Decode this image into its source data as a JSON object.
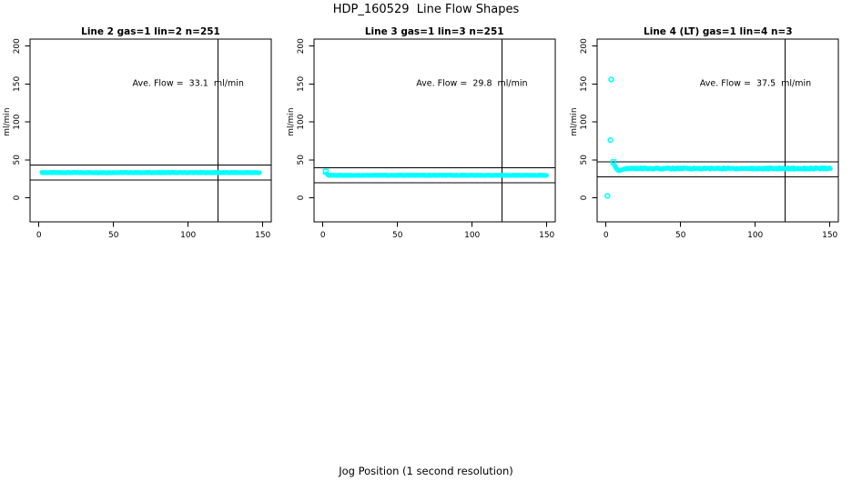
{
  "page": {
    "title": "HDP_160529  Line Flow Shapes",
    "xlabel": "Jog Position (1 second resolution)",
    "background_color": "#FFFFFF",
    "point_color": "#00FFFF",
    "line_color": "#000000"
  },
  "chart_data": [
    {
      "type": "scatter",
      "title": "Line 2 gas=1 lin=2 n=251",
      "ylabel": "ml/min",
      "annotation": "Ave. Flow =  33.1  ml/min",
      "ave_flow_ml_min": 33.1,
      "xticks": [
        0,
        50,
        100,
        150
      ],
      "yticks": [
        0,
        50,
        100,
        150,
        200
      ],
      "xlim": [
        0,
        155
      ],
      "ylim": [
        0,
        200
      ],
      "grid": false,
      "legend": "none",
      "vline_x": 120,
      "hlines_y": [
        43.1,
        23.1
      ],
      "annotation_xy": [
        100,
        150
      ],
      "series": {
        "name": "flow",
        "color": "#00FFFF",
        "outlier_points": [],
        "square_points": [],
        "lead_in_points": [],
        "flat_band": {
          "x_start": 2,
          "x_end": 148,
          "y": 33.2,
          "x_step": 0.6,
          "jitter": 0.35
        }
      }
    },
    {
      "type": "scatter",
      "title": "Line 3 gas=1 lin=3 n=251",
      "ylabel": "ml/min",
      "annotation": "Ave. Flow =  29.8  ml/min",
      "ave_flow_ml_min": 29.8,
      "xticks": [
        0,
        50,
        100,
        150
      ],
      "yticks": [
        0,
        50,
        100,
        150,
        200
      ],
      "xlim": [
        0,
        155
      ],
      "ylim": [
        0,
        200
      ],
      "grid": false,
      "legend": "none",
      "vline_x": 120,
      "hlines_y": [
        39.8,
        19.8
      ],
      "annotation_xy": [
        100,
        150
      ],
      "series": {
        "name": "flow",
        "color": "#00FFFF",
        "outlier_points": [],
        "square_points": [
          [
            2,
            34.5
          ]
        ],
        "lead_in_points": [
          [
            2.5,
            32
          ],
          [
            3,
            30.8
          ],
          [
            3.5,
            30.2
          ]
        ],
        "flat_band": {
          "x_start": 4,
          "x_end": 150,
          "y": 29.6,
          "x_step": 0.6,
          "jitter": 0.3
        }
      }
    },
    {
      "type": "scatter",
      "title": "Line 4 (LT) gas=1 lin=4 n=3",
      "ylabel": "ml/min",
      "annotation": "Ave. Flow =  37.5  ml/min",
      "ave_flow_ml_min": 37.5,
      "xticks": [
        0,
        50,
        100,
        150
      ],
      "yticks": [
        0,
        50,
        100,
        150,
        200
      ],
      "xlim": [
        0,
        155
      ],
      "ylim": [
        0,
        200
      ],
      "grid": false,
      "legend": "none",
      "vline_x": 120,
      "hlines_y": [
        47.5,
        27.5
      ],
      "annotation_xy": [
        100,
        150
      ],
      "series": {
        "name": "flow",
        "color": "#00FFFF",
        "outlier_points": [
          [
            1,
            2.5
          ],
          [
            3,
            76
          ],
          [
            3.5,
            156
          ]
        ],
        "square_points": [
          [
            5,
            47
          ]
        ],
        "lead_in_points": [
          [
            5.5,
            44
          ],
          [
            6,
            42
          ],
          [
            6.5,
            40
          ],
          [
            7,
            38.5
          ],
          [
            7.5,
            37.3
          ],
          [
            8,
            36.4
          ],
          [
            8.5,
            36
          ],
          [
            9,
            36
          ],
          [
            9.5,
            36.3
          ],
          [
            10,
            36.6
          ],
          [
            11,
            37.2
          ],
          [
            12,
            37.8
          ],
          [
            13,
            38.2
          ]
        ],
        "flat_band": {
          "x_start": 13.5,
          "x_end": 150.5,
          "y": 38.6,
          "x_step": 0.6,
          "jitter": 0.9
        }
      }
    }
  ]
}
